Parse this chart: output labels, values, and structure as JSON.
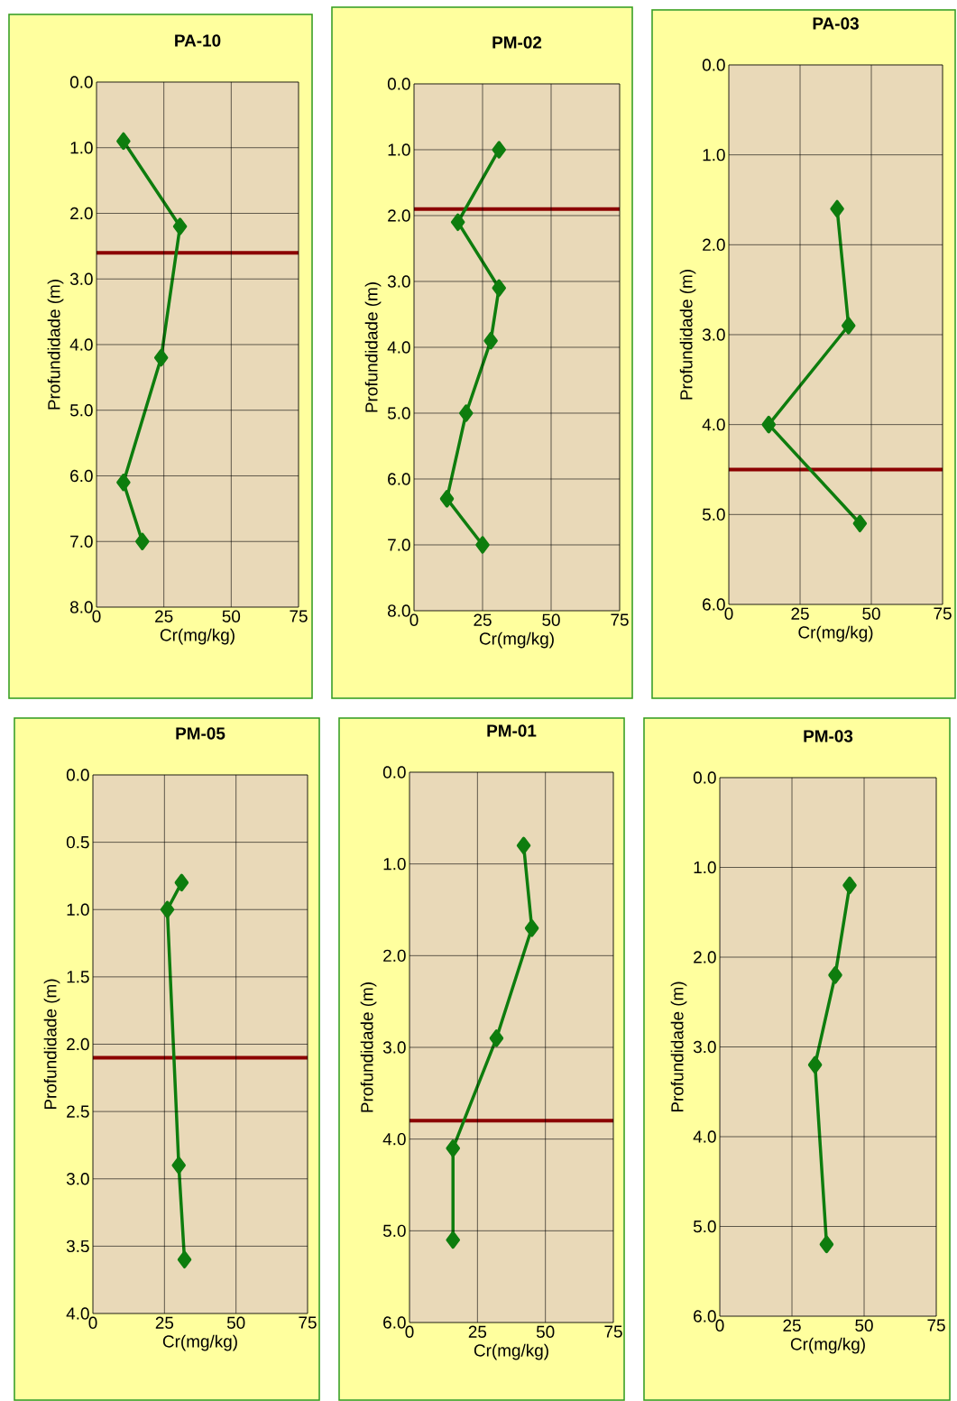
{
  "chart_data": [
    {
      "type": "line",
      "title": "PA-10",
      "xlabel": "Cr(mg/kg)",
      "ylabel": "Profundidade (m)",
      "xlim": [
        0,
        75
      ],
      "xticks": [
        0,
        25,
        50,
        75
      ],
      "ylim": [
        8,
        0
      ],
      "yticks": [
        {
          "value": 0,
          "label": "0.0"
        },
        {
          "value": 1,
          "label": "1.0"
        },
        {
          "value": 2,
          "label": "2.0"
        },
        {
          "value": 3,
          "label": "3.0"
        },
        {
          "value": 4,
          "label": "4.0"
        },
        {
          "value": 5,
          "label": "5.0"
        },
        {
          "value": 6,
          "label": "6.0"
        },
        {
          "value": 7,
          "label": "7.0"
        },
        {
          "value": 8,
          "label": "8.0"
        }
      ],
      "grid": true,
      "marker": "diamond",
      "line_style": "solid",
      "series": [
        {
          "color": "#0e7d0e",
          "x": [
            10,
            31,
            24,
            10,
            17
          ],
          "values": [
            0.9,
            2.2,
            4.2,
            6.1,
            7.0
          ]
        }
      ],
      "ref_lines": [
        {
          "axis": "y",
          "value": 2.6,
          "color": "#8b0000"
        }
      ]
    },
    {
      "type": "line",
      "title": "PM-02",
      "xlabel": "Cr(mg/kg)",
      "ylabel": "Profundidade (m)",
      "xlim": [
        0,
        75
      ],
      "xticks": [
        0,
        25,
        50,
        75
      ],
      "ylim": [
        8,
        0
      ],
      "yticks": [
        {
          "value": 0,
          "label": "0.0"
        },
        {
          "value": 1,
          "label": "1.0"
        },
        {
          "value": 2,
          "label": "2.0"
        },
        {
          "value": 3,
          "label": "3.0"
        },
        {
          "value": 4,
          "label": "4.0"
        },
        {
          "value": 5,
          "label": "5.0"
        },
        {
          "value": 6,
          "label": "6.0"
        },
        {
          "value": 7,
          "label": "7.0"
        },
        {
          "value": 8,
          "label": "8.0"
        }
      ],
      "grid": true,
      "marker": "diamond",
      "line_style": "solid",
      "series": [
        {
          "color": "#0e7d0e",
          "x": [
            31,
            16,
            31,
            28,
            19,
            12,
            25
          ],
          "values": [
            1.0,
            2.1,
            3.1,
            3.9,
            5.0,
            6.3,
            7.0
          ]
        }
      ],
      "ref_lines": [
        {
          "axis": "y",
          "value": 1.9,
          "color": "#8b0000"
        }
      ]
    },
    {
      "type": "line",
      "title": "PA-03",
      "xlabel": "Cr(mg/kg)",
      "ylabel": "Profundidade (m)",
      "xlim": [
        0,
        75
      ],
      "xticks": [
        0,
        25,
        50,
        75
      ],
      "ylim": [
        6,
        0
      ],
      "yticks": [
        {
          "value": 0,
          "label": "0.0"
        },
        {
          "value": 1,
          "label": "1.0"
        },
        {
          "value": 2,
          "label": "2.0"
        },
        {
          "value": 3,
          "label": "3.0"
        },
        {
          "value": 4,
          "label": "4.0"
        },
        {
          "value": 5,
          "label": "5.0"
        },
        {
          "value": 6,
          "label": "6.0"
        }
      ],
      "grid": true,
      "marker": "diamond",
      "line_style": "solid",
      "series": [
        {
          "color": "#0e7d0e",
          "x": [
            38,
            42,
            14,
            46
          ],
          "values": [
            1.6,
            2.9,
            4.0,
            5.1
          ]
        }
      ],
      "ref_lines": [
        {
          "axis": "y",
          "value": 4.5,
          "color": "#8b0000"
        }
      ]
    },
    {
      "type": "line",
      "title": "PM-05",
      "xlabel": "Cr(mg/kg)",
      "ylabel": "Profundidade (m)",
      "xlim": [
        0,
        75
      ],
      "xticks": [
        0,
        25,
        50,
        75
      ],
      "ylim": [
        4,
        0
      ],
      "yticks": [
        {
          "value": 0,
          "label": "0.0"
        },
        {
          "value": 0.5,
          "label": "0.5"
        },
        {
          "value": 1,
          "label": "1.0"
        },
        {
          "value": 1.5,
          "label": "1.5"
        },
        {
          "value": 2,
          "label": "2.0"
        },
        {
          "value": 2.5,
          "label": "2.5"
        },
        {
          "value": 3,
          "label": "3.0"
        },
        {
          "value": 3.5,
          "label": "3.5"
        },
        {
          "value": 4,
          "label": "4.0"
        }
      ],
      "grid": true,
      "marker": "diamond",
      "line_style": "solid",
      "series": [
        {
          "color": "#0e7d0e",
          "x": [
            31,
            26,
            30,
            32
          ],
          "values": [
            0.8,
            1.0,
            2.9,
            3.6
          ]
        }
      ],
      "ref_lines": [
        {
          "axis": "y",
          "value": 2.1,
          "color": "#8b0000"
        }
      ]
    },
    {
      "type": "line",
      "title": "PM-01",
      "xlabel": "Cr(mg/kg)",
      "ylabel": "Profundidade (m)",
      "xlim": [
        0,
        75
      ],
      "xticks": [
        0,
        25,
        50,
        75
      ],
      "ylim": [
        6,
        0
      ],
      "yticks": [
        {
          "value": 0,
          "label": "0.0"
        },
        {
          "value": 1,
          "label": "1.0"
        },
        {
          "value": 2,
          "label": "2.0"
        },
        {
          "value": 3,
          "label": "3.0"
        },
        {
          "value": 4,
          "label": "4.0"
        },
        {
          "value": 5,
          "label": "5.0"
        },
        {
          "value": 6,
          "label": "6.0"
        }
      ],
      "grid": true,
      "marker": "diamond",
      "line_style": "solid",
      "series": [
        {
          "color": "#0e7d0e",
          "x": [
            42,
            45,
            32,
            16,
            16
          ],
          "values": [
            0.8,
            1.7,
            2.9,
            4.1,
            5.1
          ]
        }
      ],
      "ref_lines": [
        {
          "axis": "y",
          "value": 3.8,
          "color": "#8b0000"
        }
      ]
    },
    {
      "type": "line",
      "title": "PM-03",
      "xlabel": "Cr(mg/kg)",
      "ylabel": "Profundidade (m)",
      "xlim": [
        0,
        75
      ],
      "xticks": [
        0,
        25,
        50,
        75
      ],
      "ylim": [
        6,
        0
      ],
      "yticks": [
        {
          "value": 0,
          "label": "0.0"
        },
        {
          "value": 1,
          "label": "1.0"
        },
        {
          "value": 2,
          "label": "2.0"
        },
        {
          "value": 3,
          "label": "3.0"
        },
        {
          "value": 4,
          "label": "4.0"
        },
        {
          "value": 5,
          "label": "5.0"
        },
        {
          "value": 6,
          "label": "6.0"
        }
      ],
      "grid": true,
      "marker": "diamond",
      "line_style": "solid",
      "series": [
        {
          "color": "#0e7d0e",
          "x": [
            45,
            40,
            33,
            37
          ],
          "values": [
            1.2,
            2.2,
            3.2,
            5.2
          ]
        }
      ]
    }
  ]
}
